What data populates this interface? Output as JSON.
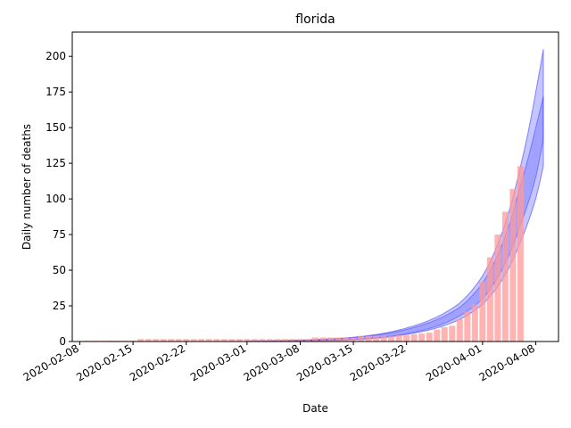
{
  "chart_data": {
    "type": "bar",
    "title": "florida",
    "xlabel": "Date",
    "ylabel": "Daily number of deaths",
    "x_axis_type": "date",
    "xlim": [
      "2020-02-07",
      "2020-04-11"
    ],
    "ylim": [
      0,
      217
    ],
    "grid": false,
    "x_ticks": [
      "2020-02-08",
      "2020-02-15",
      "2020-02-22",
      "2020-03-01",
      "2020-03-08",
      "2020-03-15",
      "2020-03-22",
      "2020-04-01",
      "2020-04-08"
    ],
    "y_ticks": [
      0,
      25,
      50,
      75,
      100,
      125,
      150,
      175,
      200
    ],
    "colors": {
      "bars": "#ff9999",
      "model_band": "#6666ff",
      "model_band_edge": "#4040ff"
    },
    "bars": {
      "start_date": "2020-02-09",
      "values": [
        0.5,
        0.5,
        0.5,
        0.5,
        0.5,
        0.5,
        0.5,
        1.7,
        1.7,
        1.7,
        1.7,
        1.7,
        1.7,
        1.7,
        1.7,
        1.7,
        1.7,
        1.7,
        1.7,
        1.7,
        1.7,
        1.7,
        1.7,
        1.7,
        1.7,
        1.7,
        1.7,
        1.7,
        1.7,
        1.7,
        2.8,
        2.8,
        2.8,
        2.8,
        2.8,
        2.8,
        3.9,
        3.9,
        3.9,
        3.9,
        3.9,
        4.5,
        4.5,
        5,
        5.6,
        6.2,
        8.4,
        10,
        11,
        15.6,
        21,
        26,
        42,
        59,
        75,
        91,
        107,
        123
      ]
    },
    "model_bands": [
      {
        "dates": [
          "2020-03-01",
          "2020-03-08",
          "2020-03-15",
          "2020-03-22",
          "2020-03-29",
          "2020-04-01",
          "2020-04-04",
          "2020-04-06",
          "2020-04-08",
          "2020-04-09"
        ],
        "lower": [
          0,
          0.5,
          1.5,
          5.5,
          18,
          30,
          55,
          82,
          115,
          142
        ],
        "upper": [
          0.2,
          0.9,
          2.8,
          8.5,
          24,
          41,
          74,
          110,
          150,
          172
        ]
      },
      {
        "dates": [
          "2020-03-01",
          "2020-03-08",
          "2020-03-15",
          "2020-03-22",
          "2020-03-29",
          "2020-04-01",
          "2020-04-04",
          "2020-04-06",
          "2020-04-08",
          "2020-04-09"
        ],
        "lower": [
          0,
          0.4,
          1.3,
          5,
          15.5,
          26,
          47,
          70,
          100,
          123
        ],
        "upper": [
          0.2,
          1,
          3,
          9.5,
          27,
          46,
          83,
          123,
          175,
          205
        ]
      }
    ]
  }
}
